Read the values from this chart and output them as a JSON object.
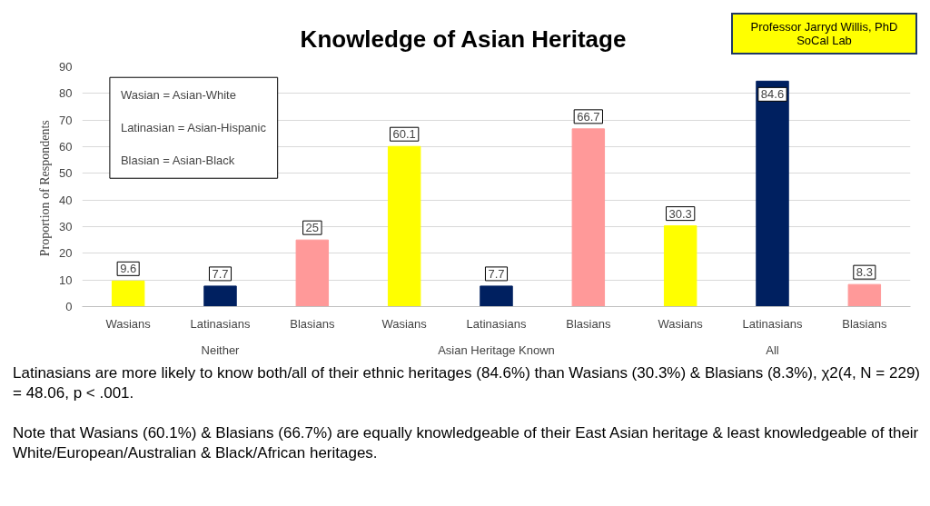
{
  "chart_data": {
    "type": "bar",
    "title": "Knowledge of Asian Heritage",
    "ylabel": "Proportion of  Respondents",
    "categories": [
      "Wasians",
      "Latinasians",
      "Blasians",
      "Wasians",
      "Latinasians",
      "Blasians",
      "Wasians",
      "Latinasians",
      "Blasians"
    ],
    "values": [
      9.6,
      7.7,
      25,
      60.1,
      7.7,
      66.7,
      30.3,
      84.6,
      8.3
    ],
    "colors": [
      "#ffff00",
      "#002060",
      "#ff9999",
      "#ffff00",
      "#002060",
      "#ff9999",
      "#ffff00",
      "#002060",
      "#ff9999"
    ],
    "data_labels": true,
    "ylim": [
      0,
      90
    ],
    "yticks": [
      0,
      10,
      20,
      30,
      40,
      50,
      60,
      70,
      80,
      90
    ],
    "grid": "y",
    "annotations": [
      "Neither",
      "Asian Heritage Known",
      "All",
      "Wasian = Asian-White",
      "Latinasian = Asian-Hispanic",
      "Blasian = Asian-Black",
      "Professor Jarryd Willis, PhD",
      "SoCal Lab",
      "Latinasians are more likely to know both/all of their ethnic heritages (84.6%) than Wasians (30.3%) & Blasians (8.3%), χ2(4, N = 229) = 48.06, p < .001.",
      "Note that Wasians (60.1%) & Blasians (66.7%) are equally knowledgeable of their East Asian heritage & least knowledgeable of their White/European/Australian & Black/African heritages."
    ]
  }
}
